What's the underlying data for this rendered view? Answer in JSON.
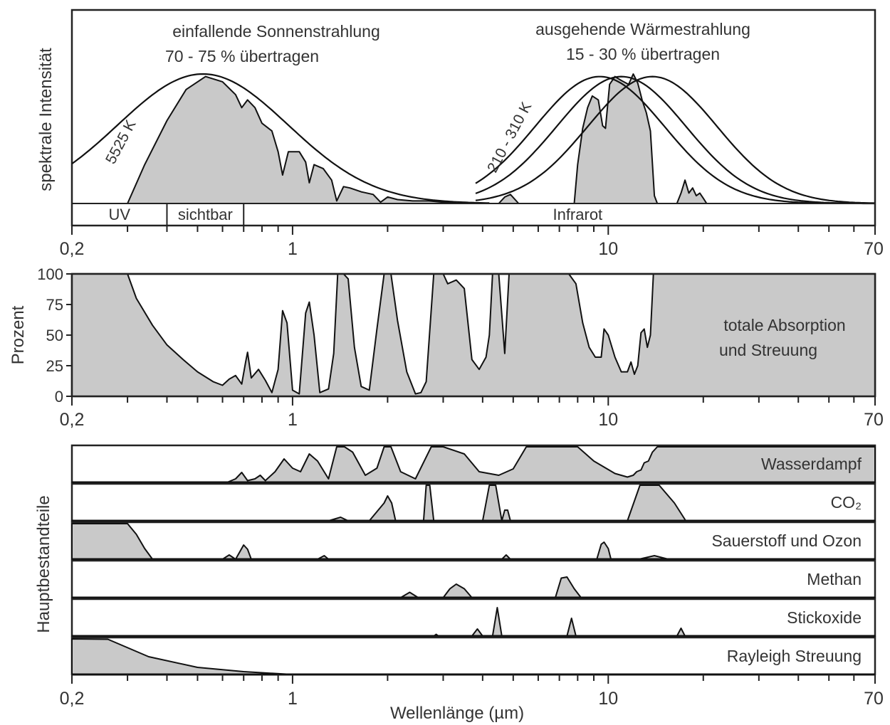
{
  "colors": {
    "fill": "#c9c9c9",
    "stroke": "#111111",
    "text": "#333333",
    "background": "#ffffff"
  },
  "x_axis": {
    "scale": "log",
    "range": [
      0.2,
      70
    ],
    "tick_labels": [
      {
        "value": 0.2,
        "label": "0,2"
      },
      {
        "value": 1,
        "label": "1"
      },
      {
        "value": 10,
        "label": "10"
      },
      {
        "value": 70,
        "label": "70"
      }
    ],
    "minor_ticks": [
      0.3,
      0.4,
      0.5,
      0.6,
      0.7,
      0.8,
      0.9,
      2,
      3,
      4,
      5,
      6,
      7,
      8,
      9,
      20,
      30,
      40,
      50,
      60
    ],
    "label": "Wellenlänge (µm)"
  },
  "chart_data": [
    {
      "type": "area",
      "ylabel": "spektrale Intensität",
      "annotations": {
        "solar_title": "einfallende Sonnenstrahlung",
        "solar_sub": "70 - 75 % übertragen",
        "thermal_title": "ausgehende Wärmestrahlung",
        "thermal_sub": "15 - 30 % übertragen",
        "sun_temp": "5525 K",
        "earth_temp": "210 - 310 K"
      },
      "bands": [
        {
          "label": "UV",
          "from": 0.2,
          "to": 0.4
        },
        {
          "label": "sichtbar",
          "from": 0.4,
          "to": 0.7
        },
        {
          "label": "Infrarot",
          "from": 0.7,
          "to": 70
        }
      ],
      "series": [
        {
          "name": "5525 K",
          "kind": "blackbody",
          "peak_wavelength": 0.52,
          "peak_level": 1.0
        },
        {
          "name": "210 - 310 K",
          "kind": "blackbody",
          "peak_wavelengths": [
            9.4,
            11,
            13.8
          ],
          "peak_level": 0.98
        },
        {
          "kind": "transmitted_solar",
          "x": [
            0.3,
            0.34,
            0.4,
            0.46,
            0.53,
            0.6,
            0.66,
            0.69,
            0.72,
            0.76,
            0.8,
            0.86,
            0.9,
            0.93,
            0.97,
            1.05,
            1.1,
            1.13,
            1.17,
            1.25,
            1.33,
            1.38,
            1.45,
            1.52,
            1.65,
            1.8,
            1.9,
            2.0,
            2.15,
            2.4,
            2.7,
            3.0,
            3.4,
            3.9
          ],
          "y": [
            0.0,
            0.3,
            0.64,
            0.88,
            0.98,
            0.94,
            0.84,
            0.74,
            0.8,
            0.74,
            0.62,
            0.56,
            0.4,
            0.22,
            0.4,
            0.4,
            0.32,
            0.16,
            0.3,
            0.27,
            0.18,
            0.02,
            0.13,
            0.12,
            0.09,
            0.07,
            0.01,
            0.05,
            0.03,
            0.02,
            0.02,
            0.01,
            0.0,
            0.0
          ]
        },
        {
          "kind": "transmitted_thermal",
          "x": [
            4.5,
            4.7,
            4.9,
            5.2,
            7.8,
            8.0,
            8.3,
            8.6,
            8.9,
            9.3,
            9.6,
            9.8,
            10.1,
            10.5,
            11.0,
            11.6,
            12.0,
            12.4,
            12.8,
            13.2,
            13.6,
            14.0,
            14.3,
            16.5,
            17.0,
            17.5,
            18.0,
            18.5,
            19.0,
            19.5,
            20.0,
            20.5
          ],
          "y": [
            0.0,
            0.05,
            0.07,
            0.0,
            0.0,
            0.3,
            0.58,
            0.74,
            0.83,
            0.8,
            0.6,
            0.58,
            0.92,
            0.98,
            0.95,
            0.92,
            1.0,
            0.93,
            0.8,
            0.7,
            0.56,
            0.06,
            0.0,
            0.0,
            0.08,
            0.18,
            0.08,
            0.12,
            0.06,
            0.08,
            0.04,
            0.0
          ]
        }
      ]
    },
    {
      "type": "area",
      "ylabel": "Prozent",
      "ylim": [
        0,
        100
      ],
      "y_ticks": [
        0,
        25,
        50,
        75,
        100
      ],
      "label": "totale Absorption",
      "label2": "und Streuung",
      "x": [
        0.2,
        0.3,
        0.32,
        0.36,
        0.4,
        0.45,
        0.5,
        0.56,
        0.6,
        0.63,
        0.66,
        0.69,
        0.71,
        0.72,
        0.74,
        0.78,
        0.82,
        0.86,
        0.9,
        0.93,
        0.96,
        1.0,
        1.05,
        1.1,
        1.13,
        1.17,
        1.22,
        1.3,
        1.35,
        1.39,
        1.45,
        1.5,
        1.57,
        1.65,
        1.75,
        1.85,
        1.95,
        2.05,
        2.15,
        2.3,
        2.45,
        2.55,
        2.65,
        2.8,
        3.0,
        3.1,
        3.3,
        3.5,
        3.7,
        3.9,
        4.1,
        4.2,
        4.3,
        4.5,
        4.7,
        4.85,
        5.2,
        5.6,
        6.0,
        6.5,
        7.0,
        7.5,
        7.9,
        8.3,
        8.7,
        9.1,
        9.5,
        9.7,
        10.0,
        10.5,
        11.0,
        11.5,
        11.8,
        12.1,
        12.4,
        12.7,
        13.0,
        13.3,
        13.6,
        13.9,
        14.2,
        14.5,
        70
      ],
      "y": [
        100,
        100,
        80,
        58,
        42,
        30,
        20,
        12,
        9,
        14,
        17,
        10,
        28,
        36,
        15,
        22,
        13,
        3,
        22,
        70,
        60,
        5,
        2,
        68,
        77,
        50,
        3,
        6,
        35,
        100,
        100,
        96,
        40,
        8,
        5,
        55,
        100,
        100,
        62,
        20,
        2,
        3,
        12,
        100,
        100,
        92,
        95,
        88,
        30,
        22,
        32,
        50,
        100,
        100,
        35,
        100,
        100,
        100,
        100,
        100,
        100,
        100,
        92,
        60,
        40,
        32,
        32,
        55,
        50,
        32,
        20,
        20,
        28,
        18,
        25,
        52,
        55,
        40,
        50,
        100,
        100,
        100,
        100
      ]
    },
    {
      "type": "area",
      "ylabel": "Hauptbestandteile",
      "xlabel": "Wellenlänge (µm)",
      "series": [
        {
          "name": "Wasserdampf",
          "x": [
            0.2,
            0.62,
            0.66,
            0.69,
            0.72,
            0.76,
            0.79,
            0.82,
            0.88,
            0.94,
            1.0,
            1.06,
            1.13,
            1.2,
            1.3,
            1.38,
            1.46,
            1.55,
            1.7,
            1.85,
            1.95,
            2.05,
            2.2,
            2.45,
            2.75,
            3.0,
            3.5,
            3.9,
            4.5,
            5.0,
            5.5,
            6.0,
            7.0,
            8.0,
            9.0,
            10.5,
            11.5,
            12.0,
            12.3,
            12.7,
            13.0,
            13.4,
            13.8,
            14.3,
            70
          ],
          "y": [
            0,
            0,
            0.1,
            0.28,
            0.05,
            0.1,
            0.2,
            0.05,
            0.3,
            0.66,
            0.4,
            0.3,
            0.8,
            0.6,
            0.1,
            1.0,
            1.0,
            0.85,
            0.2,
            0.4,
            1.0,
            1.0,
            0.3,
            0.1,
            1.0,
            1.0,
            0.8,
            0.3,
            0.2,
            0.38,
            1.0,
            1.0,
            1.0,
            1.0,
            0.6,
            0.25,
            0.15,
            0.2,
            0.3,
            0.35,
            0.55,
            0.6,
            0.85,
            1.0,
            1.0
          ]
        },
        {
          "name": "CO₂",
          "x": [
            0.2,
            1.3,
            1.42,
            1.5,
            1.75,
            1.95,
            2.0,
            2.06,
            2.12,
            2.6,
            2.65,
            2.72,
            2.8,
            4.0,
            4.2,
            4.4,
            4.6,
            4.7,
            4.8,
            4.9,
            5.0,
            11.5,
            12.6,
            14.5,
            16.2,
            17.6,
            70
          ],
          "y": [
            0,
            0,
            0.1,
            0,
            0,
            0.5,
            0.7,
            0.5,
            0,
            0,
            1.0,
            1.0,
            0,
            0,
            1.0,
            1.0,
            0,
            0.3,
            0.3,
            0,
            0,
            0,
            1.0,
            1.0,
            0.5,
            0,
            0
          ]
        },
        {
          "name": "Sauerstoff und Ozon",
          "x": [
            0.2,
            0.3,
            0.32,
            0.34,
            0.36,
            0.6,
            0.63,
            0.66,
            0.7,
            0.72,
            0.74,
            1.2,
            1.26,
            1.3,
            4.6,
            4.75,
            4.9,
            9.2,
            9.5,
            9.7,
            10.0,
            10.2,
            12.5,
            14.0,
            15.5,
            70
          ],
          "y": [
            1.0,
            1.0,
            0.7,
            0.3,
            0,
            0,
            0.12,
            0,
            0.4,
            0.28,
            0,
            0,
            0.1,
            0,
            0,
            0.12,
            0,
            0,
            0.42,
            0.48,
            0.3,
            0,
            0,
            0.1,
            0,
            0
          ]
        },
        {
          "name": "Methan",
          "x": [
            0.2,
            2.2,
            2.35,
            2.5,
            3.0,
            3.15,
            3.3,
            3.5,
            3.7,
            6.8,
            7.1,
            7.4,
            7.8,
            8.2,
            70
          ],
          "y": [
            0,
            0,
            0.15,
            0,
            0,
            0.25,
            0.38,
            0.25,
            0,
            0,
            0.55,
            0.58,
            0.25,
            0,
            0
          ]
        },
        {
          "name": "Stickoxide",
          "x": [
            0.2,
            2.8,
            2.85,
            2.9,
            3.7,
            3.85,
            4.0,
            4.3,
            4.45,
            4.6,
            7.4,
            7.65,
            7.9,
            16.5,
            17.0,
            17.5,
            70
          ],
          "y": [
            0,
            0,
            0.05,
            0,
            0,
            0.2,
            0,
            0,
            0.8,
            0,
            0,
            0.5,
            0,
            0,
            0.22,
            0,
            0
          ]
        },
        {
          "name": "Rayleigh Streuung",
          "kind": "rayleigh",
          "x": [
            0.2,
            0.26,
            0.35,
            0.5,
            0.7,
            1.0
          ],
          "y": [
            1.0,
            0.99,
            0.5,
            0.2,
            0.08,
            0
          ]
        }
      ]
    }
  ]
}
